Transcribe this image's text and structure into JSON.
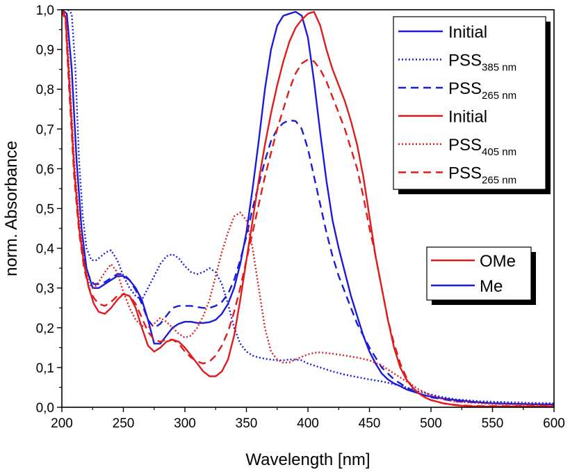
{
  "chart_data": {
    "type": "line",
    "xlabel": "Wavelength [nm]",
    "ylabel": "norm. Absorbance",
    "xlim": [
      200,
      600
    ],
    "ylim": [
      0.0,
      1.0
    ],
    "x_ticks": [
      "200",
      "250",
      "300",
      "350",
      "400",
      "450",
      "500",
      "550",
      "600"
    ],
    "y_ticks": [
      "0,0",
      "0,1",
      "0,2",
      "0,3",
      "0,4",
      "0,5",
      "0,6",
      "0,7",
      "0,8",
      "0,9",
      "1,0"
    ],
    "grid": false,
    "legend_series": [
      {
        "main": "Initial",
        "sub": "",
        "color": "#1a1adb",
        "dash": "solid"
      },
      {
        "main": "PSS",
        "sub": "385 nm",
        "color": "#1a1adb",
        "dash": "dotted"
      },
      {
        "main": "PSS",
        "sub": "265 nm",
        "color": "#1a1adb",
        "dash": "dashed"
      },
      {
        "main": "Initial",
        "sub": "",
        "color": "#e01b1b",
        "dash": "solid"
      },
      {
        "main": "PSS",
        "sub": "405 nm",
        "color": "#e01b1b",
        "dash": "dotted"
      },
      {
        "main": "PSS",
        "sub": "265 nm",
        "color": "#e01b1b",
        "dash": "dashed"
      }
    ],
    "legend_compounds": [
      {
        "label": "OMe",
        "color": "#e01b1b"
      },
      {
        "label": "Me",
        "color": "#1a1adb"
      }
    ],
    "series": [
      {
        "color": "#1a1adb",
        "dash": "solid",
        "x": [
          200,
          204,
          208,
          212,
          216,
          220,
          225,
          230,
          235,
          240,
          245,
          250,
          255,
          260,
          265,
          270,
          275,
          280,
          285,
          290,
          295,
          300,
          305,
          310,
          315,
          320,
          325,
          330,
          335,
          340,
          345,
          350,
          355,
          360,
          365,
          370,
          375,
          380,
          385,
          390,
          395,
          400,
          405,
          410,
          415,
          420,
          425,
          430,
          435,
          440,
          445,
          450,
          455,
          460,
          465,
          470,
          475,
          480,
          485,
          490,
          495,
          500,
          510,
          520,
          530,
          540,
          550,
          575,
          600
        ],
        "y": [
          1.0,
          0.99,
          0.85,
          0.62,
          0.45,
          0.35,
          0.3,
          0.3,
          0.31,
          0.32,
          0.33,
          0.33,
          0.32,
          0.3,
          0.27,
          0.22,
          0.16,
          0.16,
          0.18,
          0.2,
          0.21,
          0.215,
          0.215,
          0.212,
          0.212,
          0.214,
          0.22,
          0.235,
          0.26,
          0.3,
          0.36,
          0.44,
          0.55,
          0.67,
          0.8,
          0.9,
          0.96,
          0.985,
          0.99,
          0.995,
          0.985,
          0.93,
          0.82,
          0.69,
          0.57,
          0.47,
          0.4,
          0.34,
          0.28,
          0.23,
          0.18,
          0.14,
          0.11,
          0.085,
          0.07,
          0.06,
          0.053,
          0.045,
          0.04,
          0.035,
          0.03,
          0.027,
          0.022,
          0.018,
          0.015,
          0.012,
          0.01,
          0.008,
          0.007
        ]
      },
      {
        "color": "#1a1adb",
        "dash": "dotted",
        "x": [
          205,
          208,
          211,
          214,
          217,
          220,
          224,
          228,
          232,
          236,
          240,
          245,
          250,
          255,
          260,
          265,
          270,
          275,
          280,
          285,
          290,
          295,
          300,
          305,
          310,
          315,
          320,
          325,
          330,
          335,
          340,
          345,
          350,
          355,
          360,
          365,
          370,
          375,
          380,
          385,
          390,
          395,
          400,
          410,
          420,
          430,
          440,
          450,
          460,
          470,
          480,
          490,
          500,
          510,
          520,
          540,
          560,
          580,
          600
        ],
        "y": [
          1.0,
          0.99,
          0.85,
          0.62,
          0.48,
          0.4,
          0.37,
          0.37,
          0.38,
          0.39,
          0.395,
          0.37,
          0.33,
          0.3,
          0.28,
          0.27,
          0.3,
          0.33,
          0.36,
          0.38,
          0.385,
          0.375,
          0.355,
          0.34,
          0.335,
          0.34,
          0.35,
          0.34,
          0.31,
          0.26,
          0.2,
          0.16,
          0.14,
          0.13,
          0.125,
          0.122,
          0.12,
          0.118,
          0.118,
          0.12,
          0.12,
          0.118,
          0.11,
          0.1,
          0.09,
          0.082,
          0.076,
          0.07,
          0.065,
          0.058,
          0.05,
          0.04,
          0.032,
          0.025,
          0.02,
          0.015,
          0.013,
          0.011,
          0.01
        ]
      },
      {
        "color": "#1a1adb",
        "dash": "dashed",
        "x": [
          200,
          203,
          206,
          210,
          214,
          218,
          222,
          226,
          230,
          235,
          240,
          245,
          250,
          255,
          260,
          265,
          270,
          275,
          280,
          285,
          290,
          295,
          300,
          305,
          310,
          315,
          320,
          325,
          330,
          335,
          340,
          345,
          350,
          355,
          360,
          365,
          370,
          375,
          380,
          385,
          390,
          395,
          400,
          405,
          410,
          415,
          420,
          425,
          430,
          435,
          440,
          445,
          450,
          455,
          460,
          470,
          480,
          490,
          500,
          520,
          550,
          575,
          600
        ],
        "y": [
          1.0,
          0.98,
          0.8,
          0.6,
          0.45,
          0.37,
          0.33,
          0.31,
          0.31,
          0.315,
          0.325,
          0.335,
          0.335,
          0.32,
          0.295,
          0.26,
          0.22,
          0.2,
          0.21,
          0.23,
          0.25,
          0.255,
          0.255,
          0.255,
          0.252,
          0.25,
          0.25,
          0.255,
          0.265,
          0.285,
          0.32,
          0.37,
          0.43,
          0.5,
          0.56,
          0.62,
          0.67,
          0.7,
          0.715,
          0.722,
          0.72,
          0.7,
          0.65,
          0.58,
          0.51,
          0.44,
          0.38,
          0.33,
          0.29,
          0.25,
          0.21,
          0.18,
          0.15,
          0.125,
          0.1,
          0.07,
          0.05,
          0.035,
          0.025,
          0.015,
          0.01,
          0.008,
          0.007
        ]
      },
      {
        "color": "#e01b1b",
        "dash": "solid",
        "x": [
          200,
          203,
          206,
          210,
          214,
          218,
          222,
          226,
          230,
          235,
          240,
          245,
          250,
          255,
          260,
          265,
          270,
          275,
          280,
          285,
          290,
          295,
          300,
          305,
          310,
          315,
          320,
          325,
          330,
          335,
          340,
          345,
          350,
          355,
          360,
          365,
          370,
          375,
          380,
          385,
          390,
          395,
          400,
          405,
          410,
          415,
          420,
          425,
          430,
          435,
          440,
          445,
          450,
          453,
          455,
          460,
          465,
          470,
          475,
          480,
          485,
          490,
          495,
          500,
          510,
          520,
          530,
          540,
          550,
          575,
          600
        ],
        "y": [
          1.0,
          0.98,
          0.82,
          0.6,
          0.45,
          0.36,
          0.3,
          0.26,
          0.24,
          0.235,
          0.25,
          0.27,
          0.285,
          0.28,
          0.25,
          0.2,
          0.155,
          0.14,
          0.15,
          0.165,
          0.17,
          0.165,
          0.15,
          0.13,
          0.11,
          0.09,
          0.078,
          0.078,
          0.09,
          0.12,
          0.18,
          0.27,
          0.37,
          0.47,
          0.57,
          0.66,
          0.74,
          0.81,
          0.87,
          0.92,
          0.955,
          0.975,
          0.99,
          0.995,
          0.96,
          0.9,
          0.85,
          0.81,
          0.77,
          0.72,
          0.66,
          0.58,
          0.48,
          0.42,
          0.38,
          0.3,
          0.22,
          0.15,
          0.1,
          0.07,
          0.05,
          0.035,
          0.025,
          0.018,
          0.01,
          0.005,
          0.003,
          0.002,
          0.002,
          0.002,
          0.002
        ]
      },
      {
        "color": "#e01b1b",
        "dash": "dotted",
        "x": [
          200,
          203,
          206,
          210,
          214,
          218,
          222,
          226,
          230,
          235,
          240,
          245,
          250,
          255,
          260,
          265,
          270,
          275,
          280,
          285,
          290,
          295,
          300,
          305,
          310,
          315,
          320,
          325,
          330,
          335,
          340,
          345,
          350,
          355,
          360,
          365,
          370,
          375,
          380,
          385,
          390,
          395,
          400,
          405,
          410,
          420,
          430,
          440,
          450,
          460,
          470,
          480,
          490,
          500,
          510,
          520,
          550,
          600
        ],
        "y": [
          1.0,
          0.99,
          0.85,
          0.62,
          0.47,
          0.37,
          0.31,
          0.3,
          0.315,
          0.34,
          0.36,
          0.34,
          0.29,
          0.25,
          0.22,
          0.205,
          0.2,
          0.21,
          0.225,
          0.215,
          0.2,
          0.185,
          0.175,
          0.18,
          0.2,
          0.23,
          0.27,
          0.33,
          0.39,
          0.44,
          0.48,
          0.49,
          0.47,
          0.4,
          0.3,
          0.2,
          0.14,
          0.12,
          0.112,
          0.113,
          0.12,
          0.127,
          0.133,
          0.137,
          0.138,
          0.135,
          0.13,
          0.125,
          0.118,
          0.105,
          0.085,
          0.065,
          0.045,
          0.03,
          0.02,
          0.014,
          0.008,
          0.005
        ]
      },
      {
        "color": "#e01b1b",
        "dash": "dashed",
        "x": [
          200,
          203,
          206,
          210,
          214,
          218,
          222,
          226,
          230,
          235,
          240,
          245,
          250,
          255,
          260,
          265,
          270,
          275,
          280,
          285,
          290,
          295,
          300,
          305,
          310,
          315,
          320,
          325,
          330,
          335,
          340,
          345,
          350,
          355,
          360,
          365,
          370,
          375,
          380,
          385,
          390,
          395,
          400,
          405,
          410,
          415,
          420,
          425,
          430,
          435,
          440,
          445,
          450,
          453,
          455,
          460,
          465,
          470,
          475,
          480,
          485,
          490,
          495,
          500,
          510,
          520,
          530,
          540,
          550,
          575,
          600
        ],
        "y": [
          1.0,
          0.97,
          0.8,
          0.58,
          0.44,
          0.35,
          0.3,
          0.275,
          0.26,
          0.255,
          0.265,
          0.28,
          0.285,
          0.28,
          0.26,
          0.225,
          0.19,
          0.17,
          0.165,
          0.17,
          0.17,
          0.16,
          0.14,
          0.125,
          0.115,
          0.11,
          0.115,
          0.13,
          0.155,
          0.19,
          0.24,
          0.3,
          0.37,
          0.44,
          0.51,
          0.58,
          0.64,
          0.7,
          0.75,
          0.8,
          0.84,
          0.865,
          0.875,
          0.87,
          0.85,
          0.82,
          0.78,
          0.74,
          0.7,
          0.65,
          0.6,
          0.53,
          0.45,
          0.41,
          0.38,
          0.3,
          0.22,
          0.16,
          0.11,
          0.075,
          0.05,
          0.035,
          0.025,
          0.018,
          0.01,
          0.006,
          0.004,
          0.003,
          0.003,
          0.003,
          0.003
        ]
      }
    ]
  }
}
